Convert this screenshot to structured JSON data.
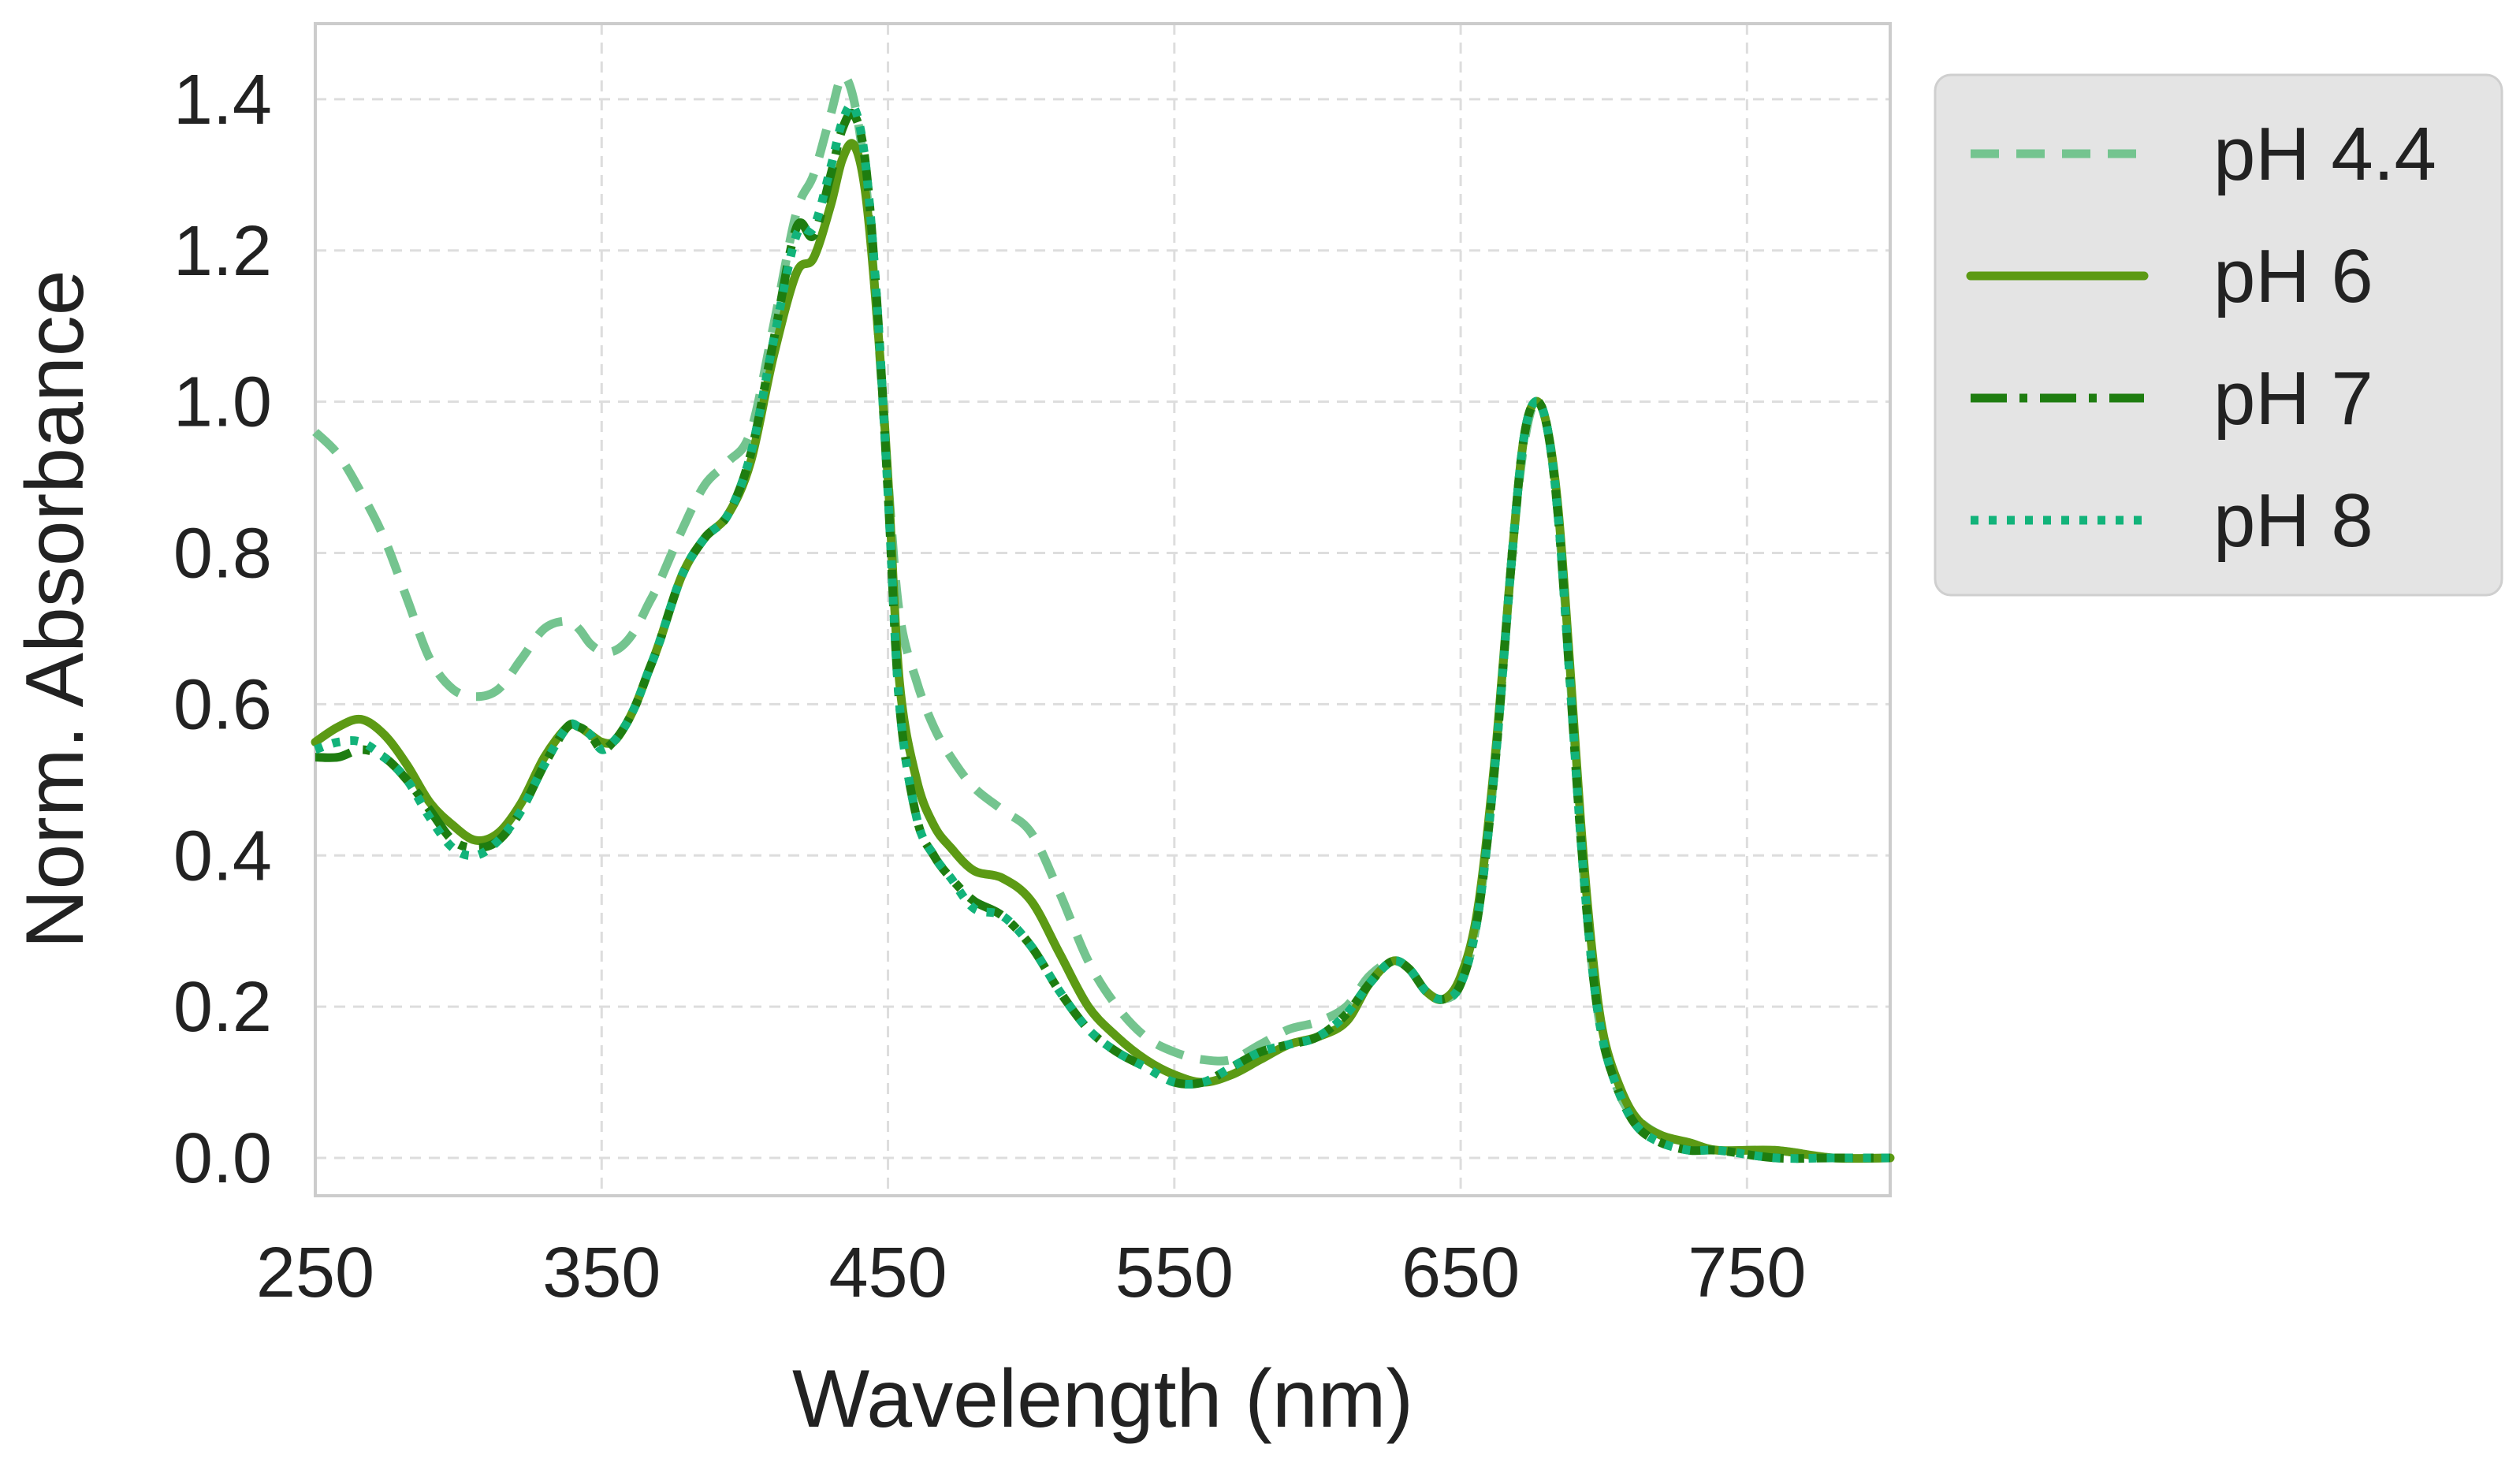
{
  "colors": {
    "background": "#ffffff",
    "frame": "#cccccc",
    "grid": "#dddddd",
    "legend_bg": "#e4e4e4",
    "legend_border": "#cfcfcf",
    "text": "#222222"
  },
  "chart_data": {
    "type": "line",
    "xlabel": "Wavelength (nm)",
    "ylabel": "Norm. Absorbance",
    "xlim": [
      250,
      800
    ],
    "ylim": [
      -0.05,
      1.5
    ],
    "xticks": [
      250,
      350,
      450,
      550,
      650,
      750
    ],
    "yticks": [
      0.0,
      0.2,
      0.4,
      0.6,
      0.8,
      1.0,
      1.2,
      1.4
    ],
    "ytick_labels": [
      "0.0",
      "0.2",
      "0.4",
      "0.6",
      "0.8",
      "1.0",
      "1.2",
      "1.4"
    ],
    "grid": true,
    "legend_position": "outside-right-top",
    "x": [
      250,
      258,
      266,
      274,
      282,
      290,
      298,
      306,
      314,
      322,
      330,
      338,
      342,
      346,
      350,
      354,
      358,
      362,
      366,
      370,
      378,
      386,
      394,
      402,
      410,
      418,
      424,
      430,
      434,
      438,
      442,
      446,
      450,
      454,
      460,
      466,
      472,
      480,
      490,
      500,
      510,
      520,
      530,
      540,
      550,
      560,
      570,
      580,
      590,
      600,
      610,
      618,
      626,
      632,
      638,
      644,
      650,
      656,
      662,
      668,
      672,
      676,
      680,
      684,
      688,
      692,
      696,
      700,
      706,
      712,
      720,
      730,
      740,
      760,
      780,
      800
    ],
    "series": [
      {
        "name": "pH 4.4",
        "color": "#74c48f",
        "dash": "dashed",
        "values": [
          0.96,
          0.93,
          0.88,
          0.82,
          0.74,
          0.66,
          0.62,
          0.61,
          0.62,
          0.66,
          0.7,
          0.71,
          0.7,
          0.68,
          0.67,
          0.67,
          0.68,
          0.7,
          0.73,
          0.76,
          0.83,
          0.89,
          0.92,
          0.96,
          1.1,
          1.25,
          1.3,
          1.38,
          1.43,
          1.4,
          1.3,
          1.12,
          0.9,
          0.72,
          0.63,
          0.57,
          0.53,
          0.49,
          0.46,
          0.43,
          0.35,
          0.26,
          0.2,
          0.16,
          0.14,
          0.13,
          0.13,
          0.15,
          0.17,
          0.18,
          0.2,
          0.24,
          0.26,
          0.25,
          0.22,
          0.21,
          0.23,
          0.32,
          0.52,
          0.8,
          0.94,
          1.0,
          0.97,
          0.85,
          0.65,
          0.42,
          0.25,
          0.15,
          0.08,
          0.05,
          0.03,
          0.02,
          0.01,
          0.01,
          0.0,
          0.0
        ]
      },
      {
        "name": "pH 6",
        "color": "#5c9a14",
        "dash": "solid",
        "values": [
          0.55,
          0.57,
          0.58,
          0.56,
          0.52,
          0.47,
          0.44,
          0.42,
          0.43,
          0.47,
          0.53,
          0.57,
          0.57,
          0.56,
          0.55,
          0.55,
          0.57,
          0.6,
          0.64,
          0.68,
          0.77,
          0.82,
          0.85,
          0.92,
          1.06,
          1.17,
          1.19,
          1.26,
          1.32,
          1.34,
          1.28,
          1.12,
          0.9,
          0.63,
          0.5,
          0.44,
          0.41,
          0.38,
          0.37,
          0.34,
          0.27,
          0.2,
          0.16,
          0.13,
          0.11,
          0.1,
          0.11,
          0.13,
          0.15,
          0.16,
          0.18,
          0.23,
          0.26,
          0.25,
          0.22,
          0.21,
          0.24,
          0.33,
          0.53,
          0.8,
          0.95,
          1.0,
          0.97,
          0.86,
          0.66,
          0.44,
          0.27,
          0.16,
          0.09,
          0.05,
          0.03,
          0.02,
          0.01,
          0.01,
          0.0,
          0.0
        ]
      },
      {
        "name": "pH 7",
        "color": "#1e7d10",
        "dash": "dashdot",
        "values": [
          0.53,
          0.53,
          0.54,
          0.53,
          0.5,
          0.46,
          0.42,
          0.41,
          0.42,
          0.46,
          0.52,
          0.57,
          0.57,
          0.56,
          0.54,
          0.55,
          0.57,
          0.6,
          0.64,
          0.68,
          0.77,
          0.82,
          0.85,
          0.93,
          1.08,
          1.23,
          1.22,
          1.3,
          1.36,
          1.38,
          1.32,
          1.14,
          0.88,
          0.6,
          0.45,
          0.4,
          0.37,
          0.34,
          0.32,
          0.28,
          0.22,
          0.17,
          0.14,
          0.12,
          0.1,
          0.1,
          0.12,
          0.14,
          0.15,
          0.16,
          0.19,
          0.23,
          0.26,
          0.25,
          0.22,
          0.21,
          0.23,
          0.32,
          0.52,
          0.8,
          0.95,
          1.0,
          0.97,
          0.85,
          0.64,
          0.42,
          0.25,
          0.15,
          0.08,
          0.04,
          0.02,
          0.01,
          0.01,
          0.0,
          0.0,
          0.0
        ]
      },
      {
        "name": "pH 8",
        "color": "#12b37a",
        "dash": "dotted",
        "values": [
          0.54,
          0.55,
          0.55,
          0.53,
          0.5,
          0.45,
          0.41,
          0.4,
          0.42,
          0.46,
          0.52,
          0.57,
          0.57,
          0.56,
          0.54,
          0.55,
          0.57,
          0.6,
          0.64,
          0.68,
          0.77,
          0.82,
          0.85,
          0.93,
          1.08,
          1.22,
          1.23,
          1.31,
          1.37,
          1.39,
          1.32,
          1.14,
          0.88,
          0.6,
          0.45,
          0.4,
          0.37,
          0.33,
          0.32,
          0.28,
          0.22,
          0.17,
          0.14,
          0.12,
          0.1,
          0.1,
          0.12,
          0.14,
          0.15,
          0.16,
          0.19,
          0.23,
          0.26,
          0.25,
          0.22,
          0.21,
          0.23,
          0.32,
          0.52,
          0.8,
          0.95,
          1.0,
          0.97,
          0.85,
          0.64,
          0.42,
          0.25,
          0.15,
          0.08,
          0.04,
          0.02,
          0.01,
          0.01,
          0.0,
          0.0,
          0.0
        ]
      }
    ]
  }
}
